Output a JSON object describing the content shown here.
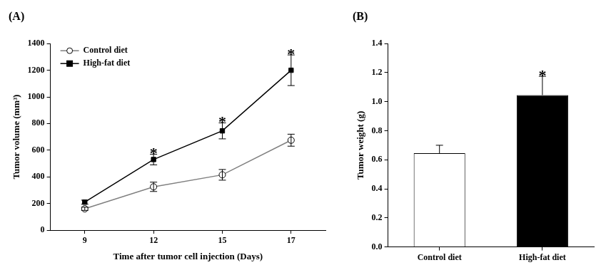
{
  "chart_data": [
    {
      "type": "line",
      "title": "(A)",
      "x_label": "Time after tumor cell injection (Days)",
      "y_label": "Tumor volume (mm³)",
      "categories": [
        "9",
        "12",
        "15",
        "17"
      ],
      "series": [
        {
          "name": "Control diet",
          "color": "#808080",
          "marker": "open_circle",
          "values": [
            160,
            325,
            415,
            675
          ],
          "errors": [
            12,
            35,
            40,
            45
          ]
        },
        {
          "name": "High-fat diet",
          "color": "#000000",
          "marker": "square",
          "values": [
            210,
            530,
            745,
            1200
          ],
          "errors": [
            15,
            40,
            60,
            115
          ]
        }
      ],
      "ylim": [
        0,
        1400
      ],
      "yticks": [
        0,
        200,
        400,
        600,
        800,
        1000,
        1200,
        1400
      ],
      "grid": false,
      "legend": "upper left",
      "annotations": [
        {
          "category": "12",
          "series": "High-fat diet",
          "text": "*"
        },
        {
          "category": "15",
          "series": "High-fat diet",
          "text": "*"
        },
        {
          "category": "17",
          "series": "High-fat diet",
          "text": "*"
        }
      ]
    },
    {
      "type": "bar",
      "title": "(B)",
      "y_label": "Tumor weight (g)",
      "categories": [
        "Control diet",
        "High-fat diet"
      ],
      "values": [
        0.645,
        1.045
      ],
      "errors": [
        0.055,
        0.13
      ],
      "colors": [
        "#ffffff",
        "#000000"
      ],
      "ylim": [
        0,
        1.4
      ],
      "yticks": [
        {
          "value": 0,
          "label": "0.0"
        },
        0.2,
        0.4,
        0.6,
        0.8,
        {
          "value": 1,
          "label": "1.0"
        },
        1.2,
        1.4
      ],
      "grid": false,
      "annotations": [
        {
          "category": "High-fat diet",
          "text": "*"
        }
      ]
    }
  ]
}
